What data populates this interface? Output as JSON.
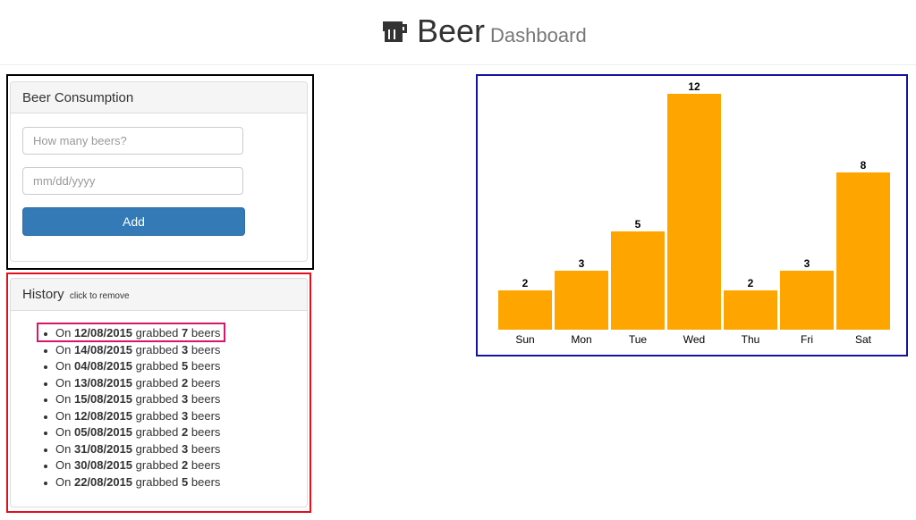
{
  "header": {
    "title": "Beer",
    "subtitle": "Dashboard",
    "icon": "beer-mug-icon"
  },
  "consumption_form": {
    "heading": "Beer Consumption",
    "beers_placeholder": "How many beers?",
    "date_placeholder": "mm/dd/yyyy",
    "add_label": "Add"
  },
  "history": {
    "heading": "History",
    "hint": "click to remove",
    "prefix": "On",
    "middle": "grabbed",
    "suffix": "beers",
    "items": [
      {
        "date": "12/08/2015",
        "count": "7"
      },
      {
        "date": "14/08/2015",
        "count": "3"
      },
      {
        "date": "04/08/2015",
        "count": "5"
      },
      {
        "date": "13/08/2015",
        "count": "2"
      },
      {
        "date": "15/08/2015",
        "count": "3"
      },
      {
        "date": "12/08/2015",
        "count": "3"
      },
      {
        "date": "05/08/2015",
        "count": "2"
      },
      {
        "date": "31/08/2015",
        "count": "3"
      },
      {
        "date": "30/08/2015",
        "count": "2"
      },
      {
        "date": "22/08/2015",
        "count": "5"
      }
    ]
  },
  "colors": {
    "bar": "#ffa500",
    "primary_button": "#337ab7"
  },
  "chart_data": {
    "type": "bar",
    "categories": [
      "Sun",
      "Mon",
      "Tue",
      "Wed",
      "Thu",
      "Fri",
      "Sat"
    ],
    "values": [
      2,
      3,
      5,
      12,
      2,
      3,
      8
    ],
    "title": "",
    "xlabel": "",
    "ylabel": "",
    "ylim": [
      0,
      12
    ],
    "grid": false,
    "data_labels": true
  }
}
